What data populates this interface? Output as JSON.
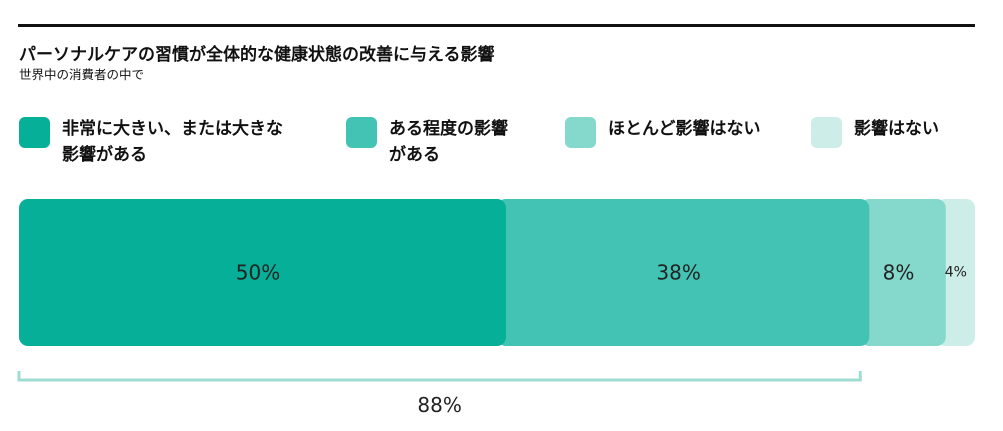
{
  "chart_data": {
    "type": "bar",
    "orientation": "horizontal-stacked",
    "title": "パーソナルケアの習慣が全体的な健康状態の改善に与える影響",
    "subtitle": "世界中の消費者の中で",
    "categories": [
      "非常に大きい、または大きな影響がある",
      "ある程度の影響がある",
      "ほとんど影響はない",
      "影響はない"
    ],
    "values": [
      50,
      38,
      8,
      4
    ],
    "value_labels": [
      "50%",
      "38%",
      "8%",
      "4%"
    ],
    "colors": [
      "#06AF97",
      "#42C3B3",
      "#84D8CC",
      "#CCEDE8"
    ],
    "bracket": {
      "spans": [
        0,
        1
      ],
      "label": "88%"
    },
    "legend_placement": "top",
    "grid": false
  },
  "legend": [
    {
      "lines": [
        "非常に大きい、または大きな",
        "影響がある"
      ],
      "color": "#06AF97"
    },
    {
      "lines": [
        "ある程度の影響",
        "がある"
      ],
      "color": "#42C3B3"
    },
    {
      "lines": [
        "ほとんど影響はない"
      ],
      "color": "#84D8CC"
    },
    {
      "lines": [
        "影響はない"
      ],
      "color": "#CCEDE8"
    }
  ]
}
